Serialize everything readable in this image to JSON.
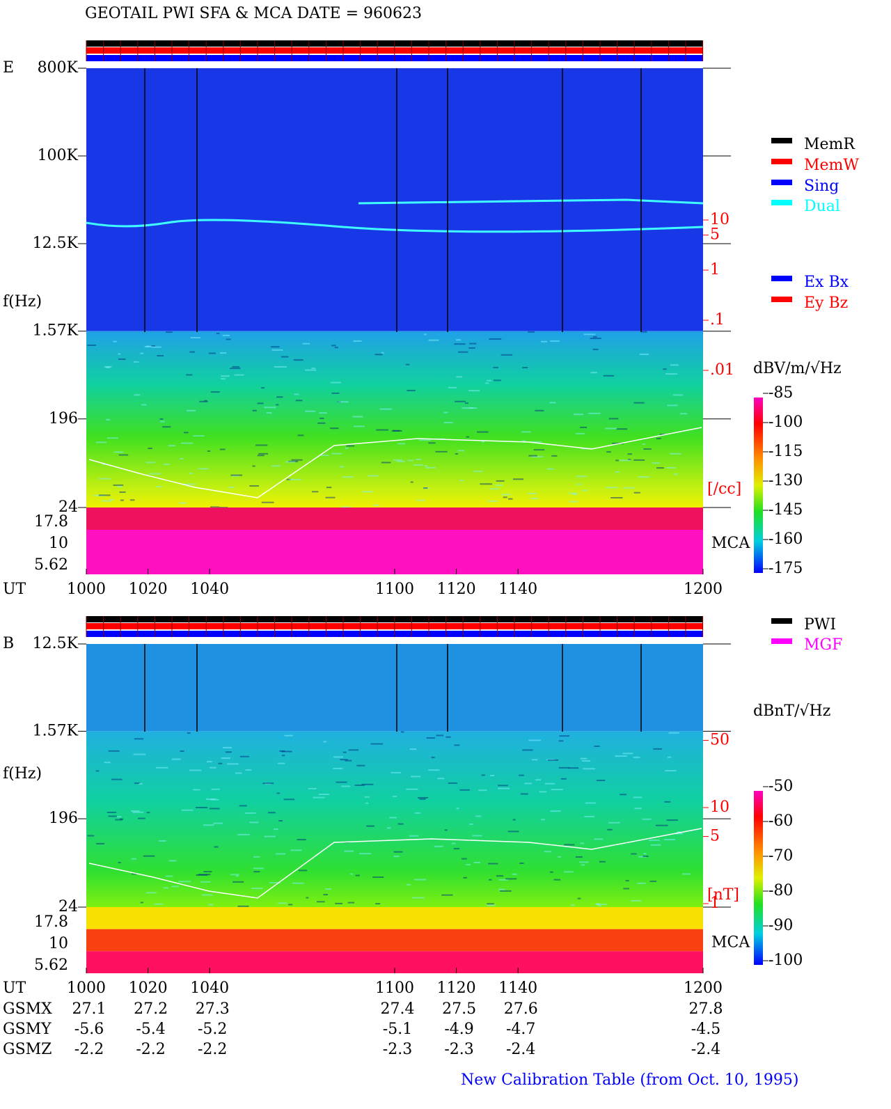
{
  "header": {
    "title": "GEOTAIL  PWI SFA & MCA   DATE = 960623"
  },
  "panels": [
    {
      "label": "E",
      "y_label": "f(Hz)",
      "x_label": "UT",
      "xlim": [
        1000,
        1200
      ],
      "xticks": [
        1000,
        1020,
        1040,
        1100,
        1120,
        1140,
        1200
      ],
      "ylim": [
        24,
        800000
      ],
      "yticks": [
        {
          "value": 800000,
          "label": "800K"
        },
        {
          "value": 100000,
          "label": "100K"
        },
        {
          "value": 12500,
          "label": "12.5K"
        },
        {
          "value": 1570,
          "label": "1.57K"
        },
        196,
        24
      ],
      "mca_ticks": [
        17.8,
        10,
        5.62
      ],
      "mca_label": "MCA",
      "density_ticks": [
        10,
        5,
        1,
        {
          "value": 0.1,
          "label": ".1"
        },
        {
          "value": 0.01,
          "label": ".01"
        }
      ],
      "density_unit": "[/cc]",
      "colorbar": {
        "title": "dBV/m/√Hz",
        "lim": [
          -175,
          -85
        ],
        "ticks": [
          -85,
          -100,
          -115,
          -130,
          -145,
          -160,
          -175
        ]
      },
      "legends": [
        [
          {
            "name": "MemR",
            "color": "#000000"
          },
          {
            "name": "MemW",
            "color": "#ff0000"
          },
          {
            "name": "Sing",
            "color": "#0000ff"
          },
          {
            "name": "Dual",
            "color": "#00ffff"
          }
        ],
        [
          {
            "name": "Ex Bx",
            "color": "#0000ff"
          },
          {
            "name": "Ey Bz",
            "color": "#ff0000"
          }
        ]
      ]
    },
    {
      "label": "B",
      "y_label": "f(Hz)",
      "x_label": "UT",
      "xlim": [
        1000,
        1200
      ],
      "xticks": [
        1000,
        1020,
        1040,
        1100,
        1120,
        1140,
        1200
      ],
      "ylim": [
        24,
        12500
      ],
      "yticks": [
        {
          "value": 12500,
          "label": "12.5K"
        },
        {
          "value": 1570,
          "label": "1.57K"
        },
        196,
        24
      ],
      "mca_ticks": [
        17.8,
        10,
        5.62
      ],
      "mca_label": "MCA",
      "density_ticks": [
        50,
        10,
        5,
        1
      ],
      "density_unit": "[nT]",
      "colorbar": {
        "title": "dBnT/√Hz",
        "lim": [
          -100,
          -50
        ],
        "ticks": [
          -50,
          -60,
          -70,
          -80,
          -90,
          -100
        ]
      },
      "legends": [
        [
          {
            "name": "PWI",
            "color": "#000000"
          },
          {
            "name": "MGF",
            "color": "#ff00ff"
          }
        ]
      ]
    }
  ],
  "orbit": {
    "rows": [
      {
        "name": "GSMX",
        "values": [
          27.1,
          27.2,
          27.3,
          27.4,
          27.5,
          27.6,
          27.8
        ]
      },
      {
        "name": "GSMY",
        "values": [
          -5.6,
          -5.4,
          -5.2,
          -5.1,
          -4.9,
          -4.7,
          -4.5
        ]
      },
      {
        "name": "GSMZ",
        "values": [
          -2.2,
          -2.2,
          -2.2,
          -2.3,
          -2.3,
          -2.4,
          -2.4
        ]
      }
    ]
  },
  "footer": "New Calibration Table (from Oct. 10, 1995)"
}
